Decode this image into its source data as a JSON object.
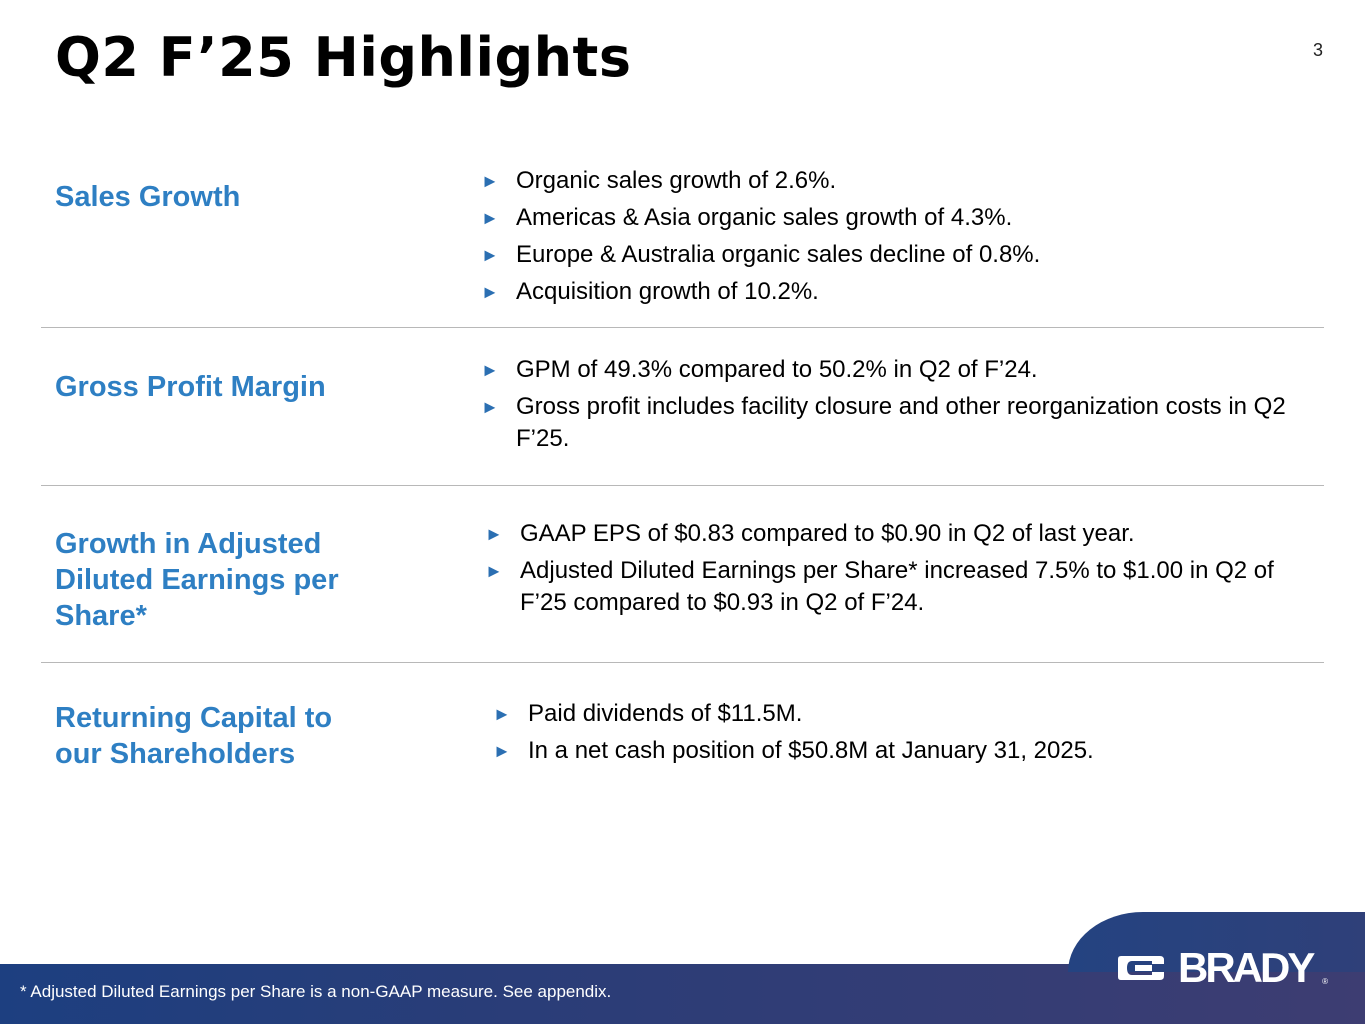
{
  "page": {
    "title": "Q2 F’25 Highlights",
    "page_number": "3"
  },
  "sections": [
    {
      "title": "Sales Growth",
      "bullets": [
        "Organic sales growth of 2.6%.",
        "Americas & Asia organic sales growth of 4.3%.",
        "Europe & Australia organic sales decline of 0.8%.",
        "Acquisition growth of 10.2%."
      ]
    },
    {
      "title": "Gross Profit Margin",
      "bullets": [
        "GPM of 49.3% compared to 50.2% in Q2 of F’24.",
        "Gross profit includes facility closure and other reorganization costs in Q2 F’25."
      ]
    },
    {
      "title": "Growth in Adjusted Diluted Earnings per Share*",
      "bullets": [
        "GAAP EPS of $0.83 compared to $0.90 in Q2 of last year.",
        "Adjusted Diluted Earnings per Share* increased 7.5% to $1.00 in Q2 of F’25 compared to $0.93 in Q2 of F’24."
      ]
    },
    {
      "title": "Returning Capital to our Shareholders",
      "bullets": [
        "Paid dividends of $11.5M.",
        "In a net cash position of $50.8M at January 31, 2025."
      ]
    }
  ],
  "footer": {
    "footnote": "* Adjusted Diluted Earnings per Share is a non-GAAP measure.  See appendix.",
    "brand": "BRADY",
    "registered": "®"
  },
  "colors": {
    "heading": "#2e7fc3",
    "bullet": "#2b6fb2",
    "footer": "#293d78"
  },
  "icons": {
    "bullet": "play-arrow-icon",
    "brand": "brady-logo-icon"
  }
}
